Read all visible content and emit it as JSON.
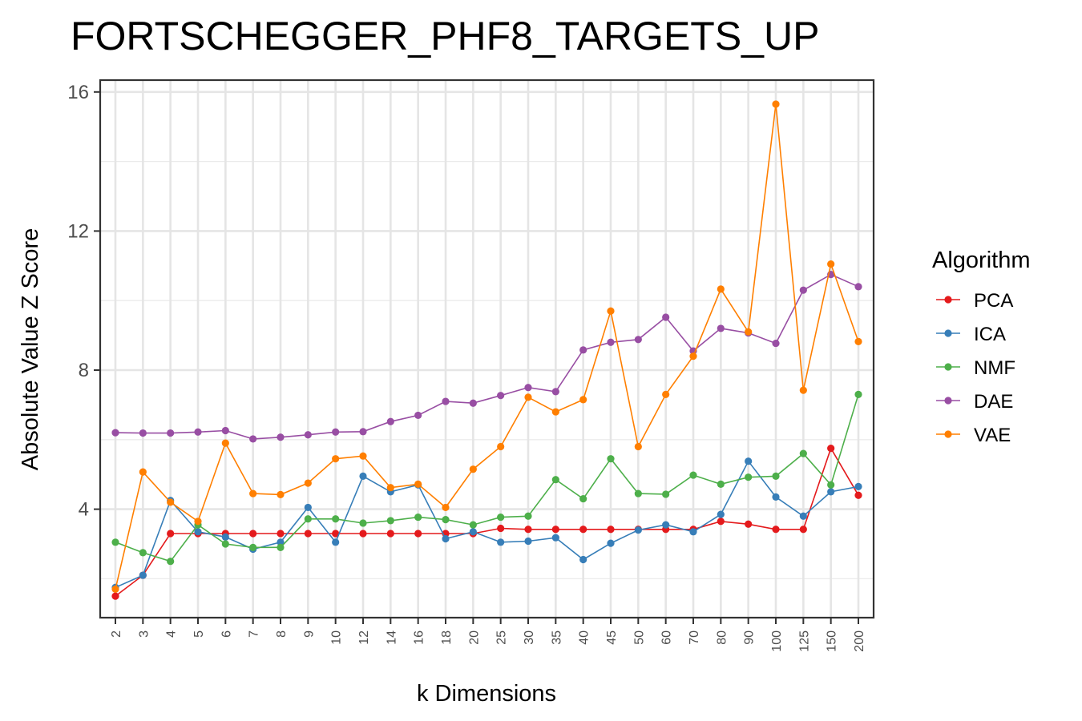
{
  "chart_data": {
    "type": "line",
    "title": "FORTSCHEGGER_PHF8_TARGETS_UP",
    "xlabel": "k Dimensions",
    "ylabel": "Absolute Value Z Score",
    "categories": [
      "2",
      "3",
      "4",
      "5",
      "6",
      "7",
      "8",
      "9",
      "10",
      "12",
      "14",
      "16",
      "18",
      "20",
      "25",
      "30",
      "35",
      "40",
      "45",
      "50",
      "60",
      "70",
      "80",
      "90",
      "100",
      "125",
      "150",
      "200"
    ],
    "yticks": [
      4,
      8,
      12,
      16
    ],
    "ylim": [
      0.8,
      16.4
    ],
    "grid": true,
    "legend_title": "Algorithm",
    "legend_position": "right",
    "series": [
      {
        "name": "PCA",
        "color": "#E41A1C",
        "values": [
          1.5,
          2.1,
          3.3,
          3.3,
          3.3,
          3.3,
          3.3,
          3.3,
          3.3,
          3.3,
          3.3,
          3.3,
          3.3,
          3.3,
          3.45,
          3.42,
          3.42,
          3.42,
          3.42,
          3.42,
          3.42,
          3.42,
          3.65,
          3.57,
          3.42,
          3.42,
          5.75,
          4.4
        ]
      },
      {
        "name": "ICA",
        "color": "#377EB8",
        "values": [
          1.75,
          2.1,
          4.25,
          3.35,
          3.2,
          2.85,
          3.05,
          4.05,
          3.05,
          4.95,
          4.5,
          4.7,
          3.15,
          3.35,
          3.05,
          3.08,
          3.18,
          2.55,
          3.02,
          3.4,
          3.55,
          3.35,
          3.85,
          5.38,
          4.35,
          3.8,
          4.5,
          4.65
        ]
      },
      {
        "name": "NMF",
        "color": "#4DAF4A",
        "values": [
          3.05,
          2.75,
          2.5,
          3.55,
          3.0,
          2.9,
          2.9,
          3.72,
          3.72,
          3.6,
          3.67,
          3.77,
          3.7,
          3.55,
          3.77,
          3.8,
          4.85,
          4.3,
          5.45,
          4.45,
          4.43,
          4.98,
          4.72,
          4.92,
          4.95,
          5.6,
          4.7,
          7.3
        ]
      },
      {
        "name": "DAE",
        "color": "#984EA3",
        "values": [
          6.2,
          6.19,
          6.19,
          6.22,
          6.26,
          6.02,
          6.07,
          6.14,
          6.22,
          6.23,
          6.52,
          6.7,
          7.1,
          7.05,
          7.27,
          7.5,
          7.38,
          8.58,
          8.8,
          8.88,
          9.52,
          8.55,
          9.2,
          9.07,
          8.77,
          10.3,
          10.75,
          10.4
        ]
      },
      {
        "name": "VAE",
        "color": "#FF7F00",
        "values": [
          1.7,
          5.07,
          4.2,
          3.65,
          5.9,
          4.45,
          4.42,
          4.75,
          5.45,
          5.53,
          4.62,
          4.72,
          4.05,
          5.15,
          5.8,
          7.22,
          6.8,
          7.15,
          9.7,
          5.8,
          7.3,
          8.4,
          10.33,
          9.1,
          15.65,
          7.42,
          11.05,
          8.82
        ]
      }
    ]
  }
}
